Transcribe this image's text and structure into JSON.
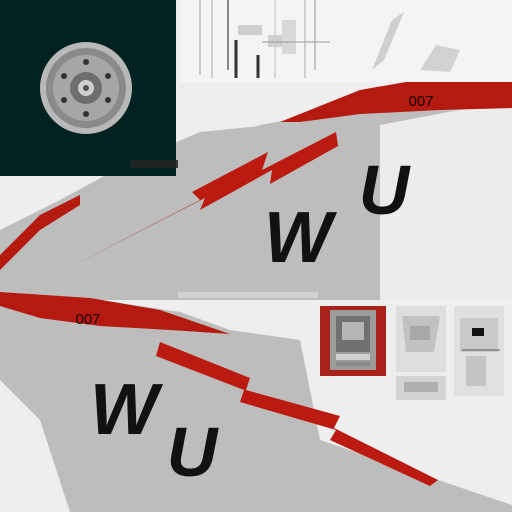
{
  "colors": {
    "sheet_background": "#eeeeee",
    "tail_grey": "#bdbdbd",
    "stripe_red": "#b41a0f",
    "lightning_red": "#bb1a10",
    "letter_black": "#111111",
    "wheel_well": "#022121"
  },
  "upper_fin": {
    "modex": "007",
    "tail_code_first": "W",
    "tail_code_second": "U"
  },
  "lower_fin": {
    "modex": "007",
    "tail_code_first": "W",
    "tail_code_second": "U"
  },
  "icons": [
    "wheel-icon",
    "lightning-bolt-icon",
    "panel-detail-icon"
  ]
}
